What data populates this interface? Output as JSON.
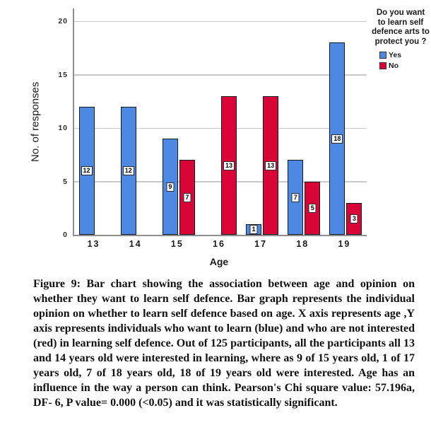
{
  "chart_data": {
    "type": "bar",
    "title": "",
    "categories": [
      "13",
      "14",
      "15",
      "16",
      "17",
      "18",
      "19"
    ],
    "series": [
      {
        "name": "Yes",
        "color": "#4d89e3",
        "values": [
          12,
          12,
          9,
          0,
          1,
          7,
          18
        ]
      },
      {
        "name": "No",
        "color": "#d80536",
        "values": [
          0,
          0,
          7,
          13,
          13,
          5,
          3
        ]
      }
    ],
    "xlabel": "Age",
    "ylabel": "No. of responses",
    "yticks": [
      0,
      5,
      10,
      15,
      20
    ],
    "ylim": [
      0,
      21.2
    ],
    "grid": "horizontal",
    "bar_labels_shown": true,
    "legend": {
      "title": "Do you want to learn self defence arts to protect you ?",
      "position": "right",
      "entries": [
        "Yes",
        "No"
      ]
    }
  },
  "colors": {
    "yes_bar": "#4d89e3",
    "no_bar": "#d80536",
    "bar_border": "#141a24",
    "gridline": "#c9c9c9",
    "axis": "#8f8f8f"
  },
  "caption": {
    "text": "Figure 9: Bar chart showing the association between age and opinion on whether they want to learn self defence. Bar graph represents the individual opinion on whether to learn self defence based on age. X axis represents age ,Y axis represents individuals who want to learn (blue) and who are not interested (red) in learning self defence. Out of 125 participants, all the participants all 13 and 14 years old were interested in learning, where as 9 of 15 years old, 1 of 17 years old, 7 of 18 years old, 18 of 19 years old were interested. Age has an influence in the way a person can think. Pearson's Chi square value: 57.196a, DF- 6, P value= 0.000 (<0.05) and it was statistically significant."
  }
}
